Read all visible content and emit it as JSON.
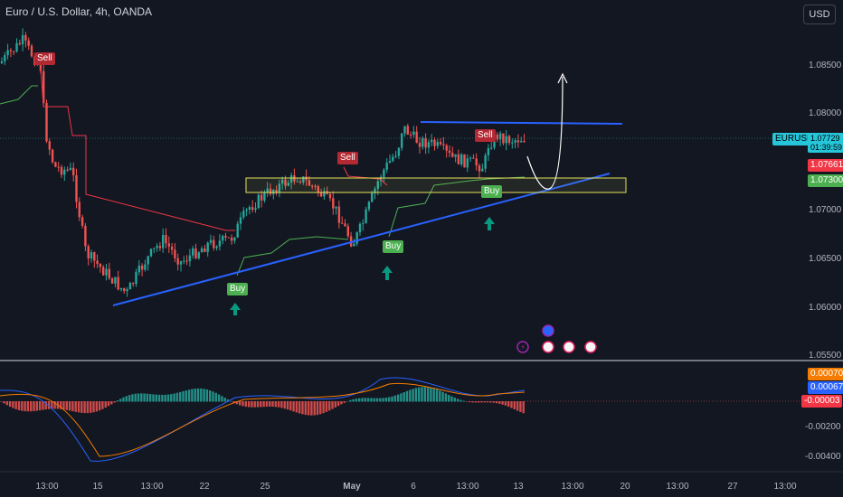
{
  "header": {
    "title": "Euro / U.S. Dollar, 4h, OANDA",
    "currency_button": "USD"
  },
  "price_axis": {
    "ticks": [
      "1.08500",
      "1.08000",
      "1.07000",
      "1.06500",
      "1.06000",
      "1.05500"
    ]
  },
  "price_tags": {
    "symbol": "EURUSD",
    "last_price": "1.07729",
    "countdown": "01:39:59",
    "red_level": "1.07661",
    "green_level": "1.07300"
  },
  "indicator_axis": {
    "tags": [
      "0.00070",
      "0.00067",
      "-0.00003"
    ],
    "ticks": [
      "-0.00200",
      "-0.00400"
    ]
  },
  "time_axis": {
    "ticks": [
      "13:00",
      "15",
      "13:00",
      "22",
      "25",
      "May",
      "6",
      "13:00",
      "13",
      "13:00",
      "20",
      "13:00",
      "27",
      "13:00"
    ]
  },
  "signals": {
    "sell_label": "Sell",
    "buy_label": "Buy"
  },
  "colors": {
    "background": "#131722",
    "bull": "#26a69a",
    "bear": "#ef5350",
    "trendline": "#2962ff",
    "zone": "#e5e05a",
    "supertrend_red": "#f23645",
    "supertrend_green": "#4caf50"
  }
}
